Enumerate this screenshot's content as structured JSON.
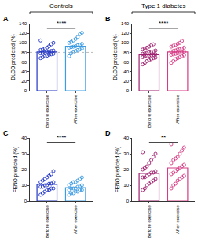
{
  "chart_data": [
    {
      "type": "bar",
      "panel_label": "A",
      "header": "Controls",
      "categories": [
        "Before exercise",
        "After exercise"
      ],
      "values": [
        81,
        93
      ],
      "colors": [
        "#2336c4",
        "#3c9be3"
      ],
      "marker": "circle-open",
      "points": [
        [
          68,
          70,
          72,
          73,
          75,
          76,
          77,
          78,
          79,
          80,
          81,
          82,
          83,
          84,
          85,
          86,
          88,
          90,
          93,
          97,
          100,
          105
        ],
        [
          72,
          78,
          80,
          83,
          85,
          86,
          88,
          90,
          91,
          92,
          93,
          95,
          96,
          98,
          100,
          102,
          105,
          108,
          112,
          118,
          121
        ]
      ],
      "y_label": "DLCO predicted (%)",
      "ylim": [
        0,
        140
      ],
      "yticks": [
        0,
        20,
        40,
        60,
        80,
        100,
        120,
        140
      ],
      "significance": "****",
      "reference_line": 80,
      "grid": false
    },
    {
      "type": "bar",
      "panel_label": "B",
      "header": "Type 1 diabetes",
      "categories": [
        "Before exercise",
        "After exercise"
      ],
      "values": [
        75,
        81
      ],
      "colors": [
        "#9e1f6e",
        "#d63a83"
      ],
      "marker": "circle-open",
      "points": [
        [
          55,
          58,
          62,
          64,
          66,
          68,
          69,
          70,
          71,
          72,
          73,
          74,
          75,
          76,
          77,
          78,
          79,
          80,
          81,
          82,
          84,
          86,
          88,
          90,
          92,
          95,
          97
        ],
        [
          58,
          62,
          66,
          68,
          70,
          72,
          74,
          75,
          76,
          77,
          78,
          79,
          80,
          81,
          82,
          83,
          84,
          86,
          87,
          88,
          90,
          92,
          94,
          96,
          98,
          100,
          104
        ]
      ],
      "y_label": "DLCO predicted (%)",
      "ylim": [
        0,
        140
      ],
      "yticks": [
        0,
        20,
        40,
        60,
        80,
        100,
        120,
        140
      ],
      "significance": "****",
      "grid": false
    },
    {
      "type": "bar",
      "panel_label": "C",
      "categories": [
        "Before exercise",
        "After exercise"
      ],
      "values": [
        10.5,
        8.5
      ],
      "colors": [
        "#2336c4",
        "#3c9be3"
      ],
      "marker": "circle-open",
      "points": [
        [
          4,
          5,
          6,
          7,
          7,
          8,
          8,
          9,
          9,
          10,
          10,
          11,
          11,
          12,
          12,
          13,
          14,
          15,
          16,
          17,
          19
        ],
        [
          4,
          5,
          5,
          6,
          6,
          7,
          7,
          7,
          8,
          8,
          8,
          9,
          9,
          10,
          10,
          11,
          12,
          12,
          13,
          14,
          15
        ]
      ],
      "y_label": "FENO predicted (%)",
      "ylim": [
        0,
        40
      ],
      "yticks": [
        0,
        10,
        20,
        30,
        40
      ],
      "significance": "****",
      "grid": false
    },
    {
      "type": "bar",
      "panel_label": "D",
      "categories": [
        "Before exercise",
        "After exercise"
      ],
      "values": [
        17.5,
        21
      ],
      "colors": [
        "#9e1f6e",
        "#d63a83"
      ],
      "marker": "circle-open",
      "points": [
        [
          7,
          8,
          10,
          11,
          12,
          13,
          14,
          15,
          15,
          16,
          17,
          18,
          18,
          19,
          20,
          21,
          22,
          24,
          26,
          28,
          30,
          31
        ],
        [
          8,
          10,
          11,
          13,
          14,
          15,
          16,
          17,
          18,
          19,
          20,
          21,
          22,
          23,
          24,
          26,
          27,
          28,
          30,
          32,
          34,
          36
        ]
      ],
      "y_label": "FENO predicted (%)",
      "ylim": [
        0,
        40
      ],
      "yticks": [
        0,
        10,
        20,
        30,
        40
      ],
      "significance": "**",
      "grid": false
    }
  ]
}
